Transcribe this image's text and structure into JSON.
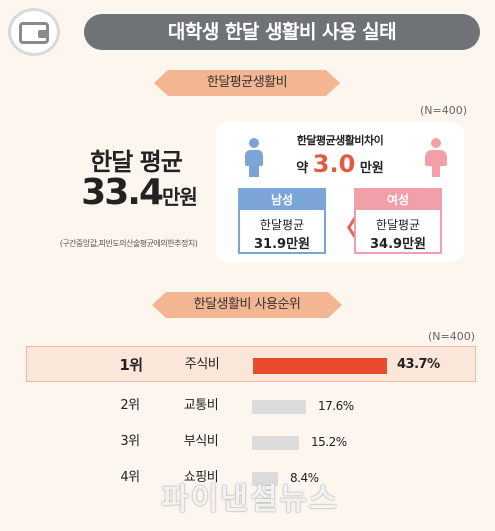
{
  "header": {
    "title": "대학생 한달 생활비 사용 실태"
  },
  "section1": {
    "ribbon": "한달평균생활비",
    "n_label": "(N=400)",
    "avg_title": "한달 평균",
    "avg_value": "33.4",
    "avg_unit": "만원",
    "source_note": "(구간중앙값,피빈도의산술평균에의한추정치)",
    "diff_title": "한달평균생활비차이",
    "diff_prefix": "약",
    "diff_value": "3.0",
    "diff_unit": "만원",
    "male": {
      "label": "남성",
      "line1": "한달평균",
      "line2": "31.9만원"
    },
    "female": {
      "label": "여성",
      "line1": "한달평균",
      "line2": "34.9만원"
    },
    "chevron": "〈"
  },
  "section2": {
    "ribbon": "한달생활비 사용순위",
    "n_label": "(N=400)"
  },
  "chart_data": {
    "type": "bar",
    "categories": [
      "주식비",
      "교통비",
      "부식비",
      "쇼핑비"
    ],
    "ranks": [
      "1위",
      "2위",
      "3위",
      "4위"
    ],
    "values": [
      43.7,
      17.6,
      15.2,
      8.4
    ],
    "value_labels": [
      "43.7%",
      "17.6%",
      "15.2%",
      "8.4%"
    ],
    "title": "",
    "xlabel": "",
    "ylabel": "",
    "highlight_color": "#ea4a2f",
    "bar_color": "#dcdcdc"
  },
  "watermark": "파이낸셜뉴스",
  "colors": {
    "male": "#7aa5d6",
    "female": "#f1a0aa",
    "accent": "#e35a40",
    "ribbon": "#f3b592"
  }
}
